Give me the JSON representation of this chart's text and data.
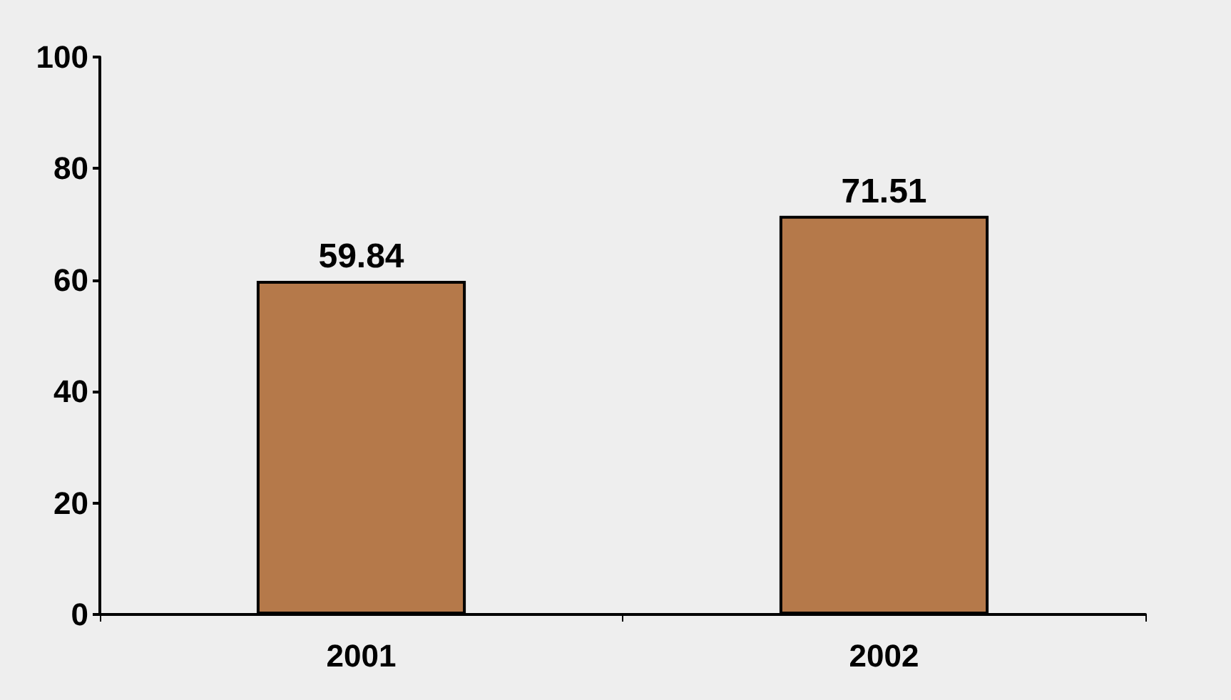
{
  "chart_data": {
    "type": "bar",
    "categories": [
      "2001",
      "2002"
    ],
    "values": [
      59.84,
      71.51
    ],
    "color": "#b5794a",
    "ylim": [
      0,
      100
    ],
    "yticks": [
      0,
      20,
      40,
      60,
      80,
      100
    ],
    "grid": false,
    "data_labels": true
  }
}
